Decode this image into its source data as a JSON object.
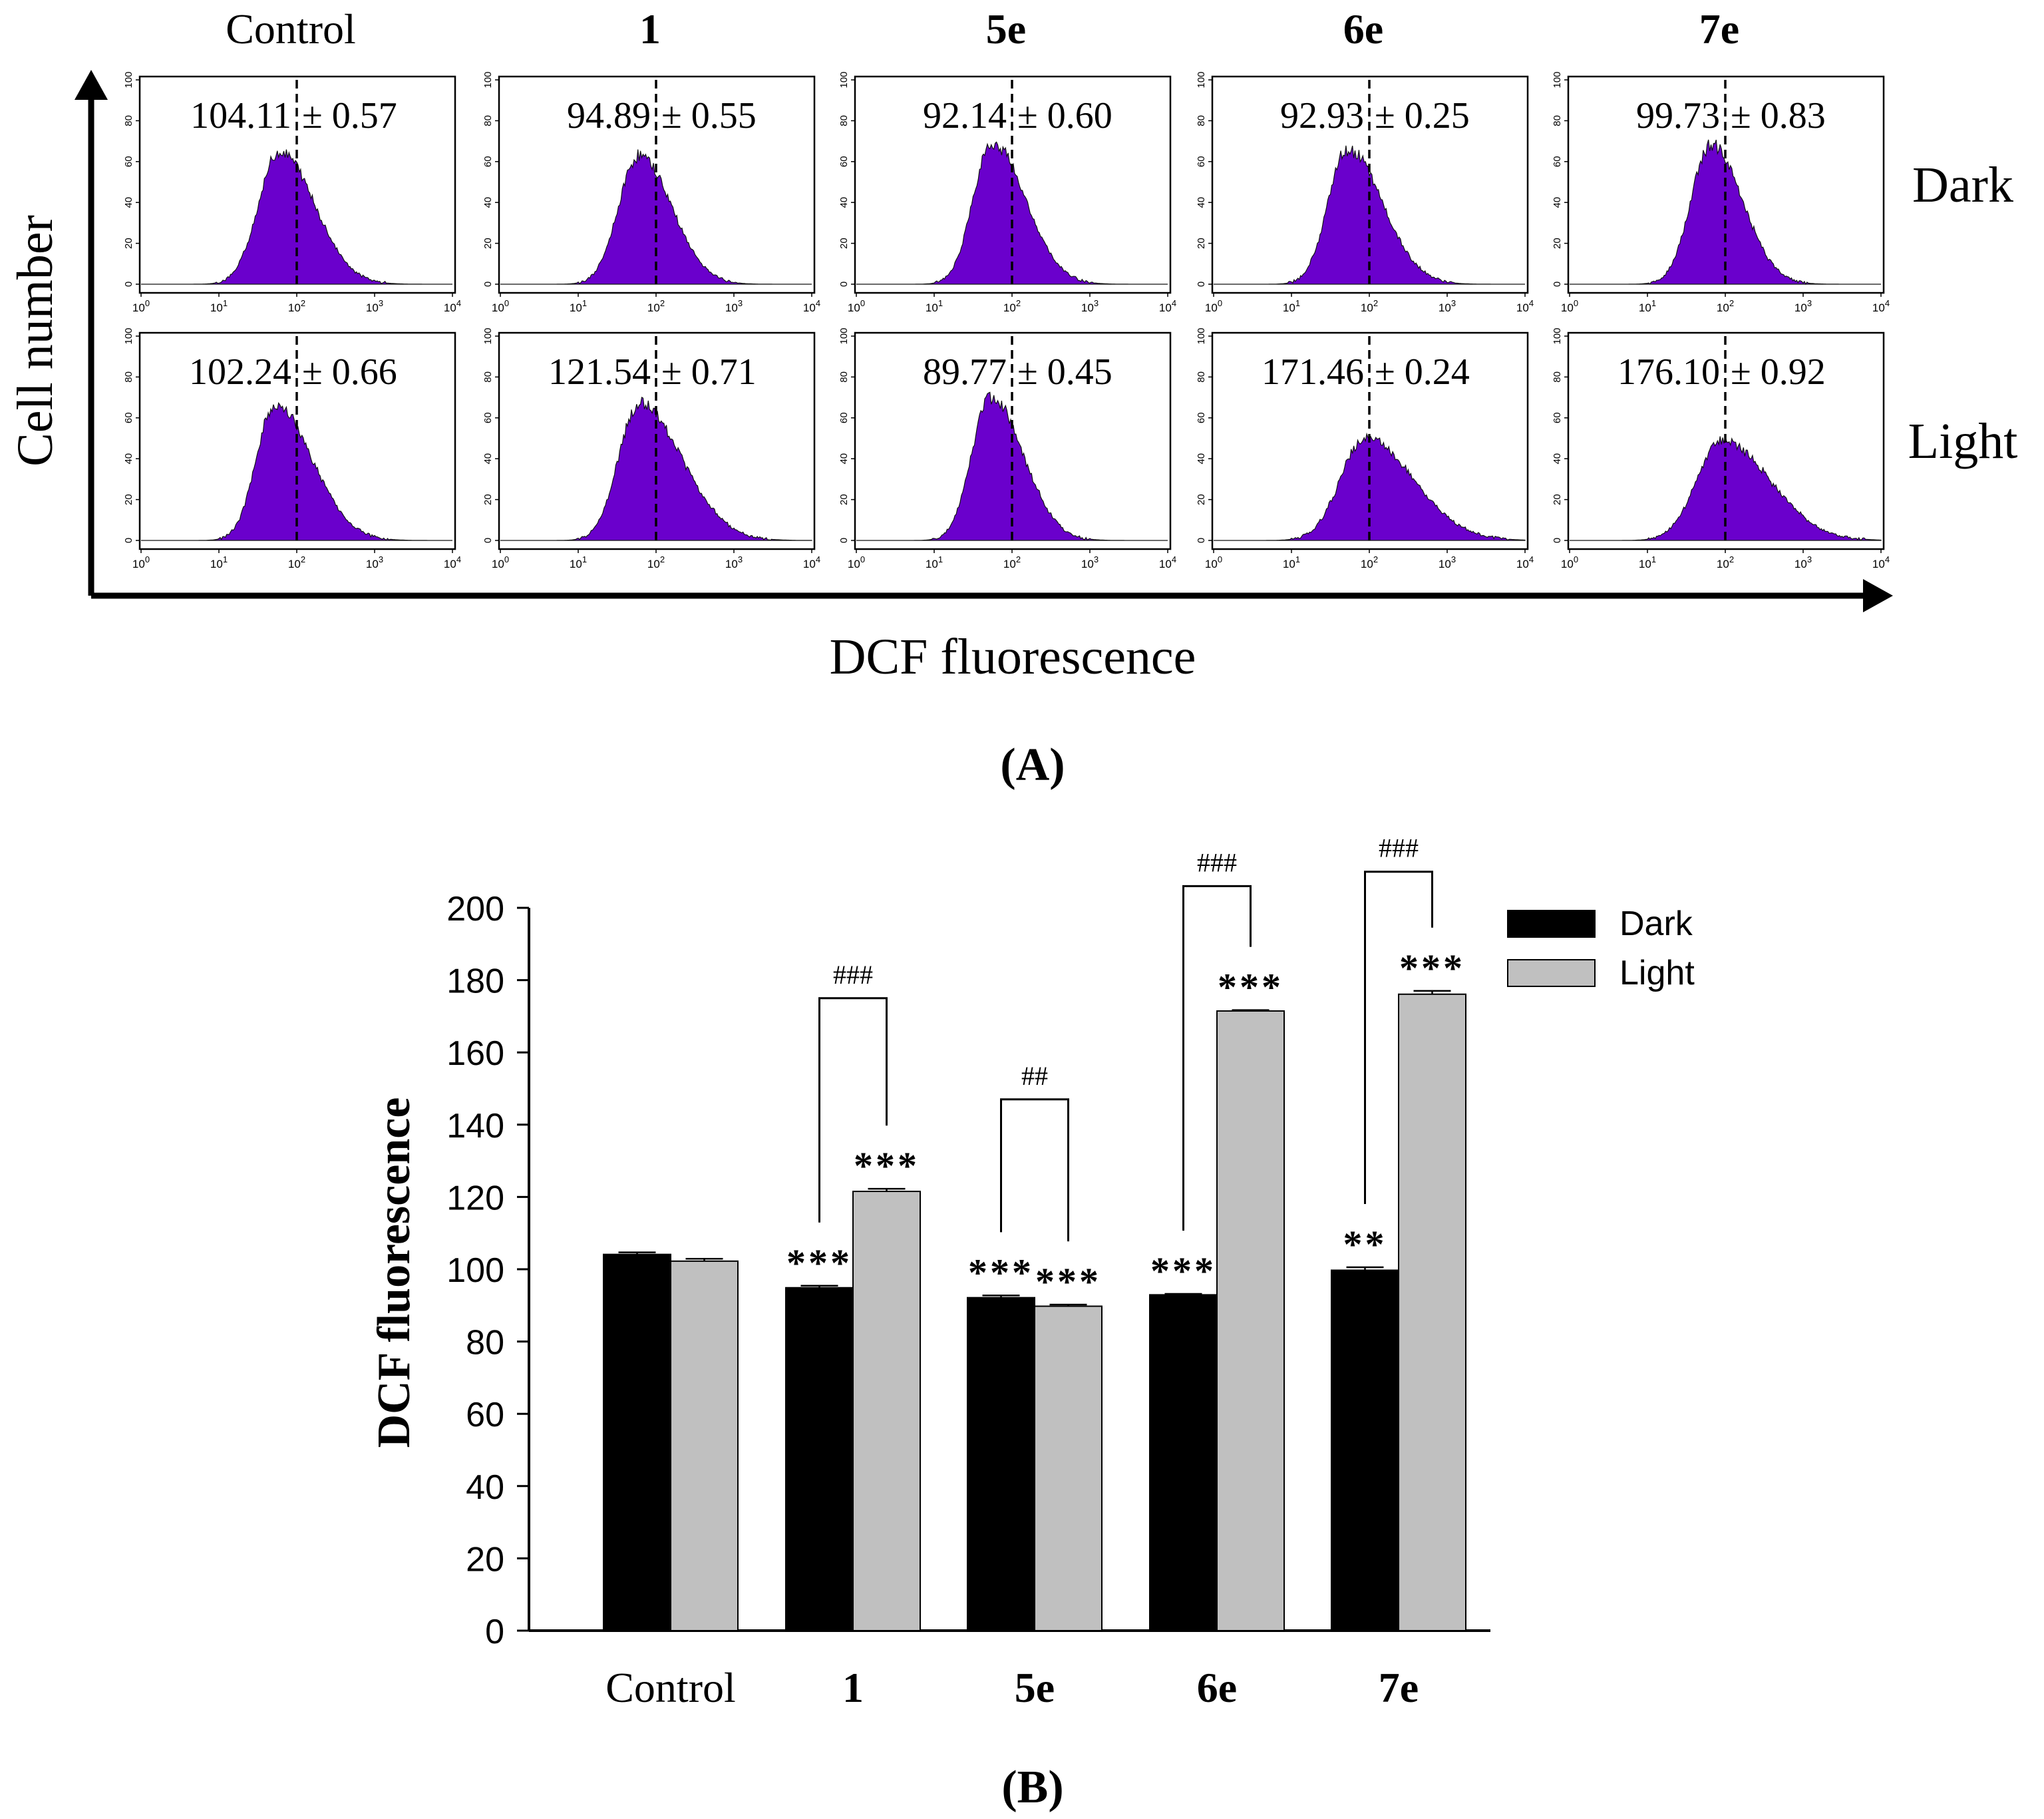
{
  "figure": {
    "panel_a_label": "(A)",
    "panel_b_label": "(B)"
  },
  "colors": {
    "histogram_fill": "#6a00cc",
    "dark_bar": "#000000",
    "light_bar": "#c0c0c0",
    "axis": "#000000"
  },
  "chart_data": [
    {
      "type": "histogram",
      "panel": "A",
      "xlabel": "DCF fluorescence",
      "ylabel": "Cell number",
      "x_scale": "log",
      "x_range": [
        1,
        10000
      ],
      "x_ticks": [
        "10",
        "10",
        "10",
        "10",
        "10"
      ],
      "x_tick_exponents": [
        "0",
        "1",
        "2",
        "3",
        "4"
      ],
      "y_ticks": [
        "0",
        "20",
        "40",
        "60",
        "80",
        "100"
      ],
      "y_range": [
        0,
        100
      ],
      "marker_value": 100,
      "columns": [
        {
          "label": "Control",
          "bold": false
        },
        {
          "label": "1",
          "bold": true
        },
        {
          "label": "5e",
          "bold": true
        },
        {
          "label": "6e",
          "bold": true
        },
        {
          "label": "7e",
          "bold": true
        }
      ],
      "rows": [
        "Dark",
        "Light"
      ],
      "panels": [
        {
          "row": "Dark",
          "column": "Control",
          "mean": "104.11",
          "sd": "0.57",
          "peak_log": 1.78,
          "sigma_left": 0.27,
          "sigma_right": 0.45,
          "peak_height": 65
        },
        {
          "row": "Dark",
          "column": "1",
          "mean": "94.89",
          "sd": "0.55",
          "peak_log": 1.78,
          "sigma_left": 0.26,
          "sigma_right": 0.42,
          "peak_height": 63
        },
        {
          "row": "Dark",
          "column": "5e",
          "mean": "92.14",
          "sd": "0.60",
          "peak_log": 1.74,
          "sigma_left": 0.24,
          "sigma_right": 0.43,
          "peak_height": 69
        },
        {
          "row": "Dark",
          "column": "6e",
          "mean": "92.93",
          "sd": "0.25",
          "peak_log": 1.72,
          "sigma_left": 0.25,
          "sigma_right": 0.45,
          "peak_height": 66
        },
        {
          "row": "Dark",
          "column": "7e",
          "mean": "99.73",
          "sd": "0.83",
          "peak_log": 1.82,
          "sigma_left": 0.26,
          "sigma_right": 0.4,
          "peak_height": 68
        },
        {
          "row": "Light",
          "column": "Control",
          "mean": "102.24",
          "sd": "0.66",
          "peak_log": 1.72,
          "sigma_left": 0.24,
          "sigma_right": 0.48,
          "peak_height": 66
        },
        {
          "row": "Light",
          "column": "1",
          "mean": "121.54",
          "sd": "0.71",
          "peak_log": 1.78,
          "sigma_left": 0.26,
          "sigma_right": 0.55,
          "peak_height": 67
        },
        {
          "row": "Light",
          "column": "5e",
          "mean": "89.77",
          "sd": "0.45",
          "peak_log": 1.72,
          "sigma_left": 0.24,
          "sigma_right": 0.42,
          "peak_height": 70
        },
        {
          "row": "Light",
          "column": "6e",
          "mean": "171.46",
          "sd": "0.24",
          "peak_log": 1.95,
          "sigma_left": 0.32,
          "sigma_right": 0.62,
          "peak_height": 50
        },
        {
          "row": "Light",
          "column": "7e",
          "mean": "176.10",
          "sd": "0.92",
          "peak_log": 1.95,
          "sigma_left": 0.32,
          "sigma_right": 0.62,
          "peak_height": 49
        }
      ]
    },
    {
      "type": "bar",
      "panel": "B",
      "ylabel": "DCF fluorescence",
      "ylim": [
        0,
        200
      ],
      "y_ticks": [
        "0",
        "20",
        "40",
        "60",
        "80",
        "100",
        "120",
        "140",
        "160",
        "180",
        "200"
      ],
      "categories": [
        "Control",
        "1",
        "5e",
        "6e",
        "7e"
      ],
      "category_bold": [
        false,
        true,
        true,
        true,
        true
      ],
      "legend_position": "top-right",
      "series": [
        {
          "name": "Dark",
          "values": [
            104.11,
            94.89,
            92.14,
            92.93,
            99.73
          ],
          "errors": [
            0.57,
            0.55,
            0.6,
            0.25,
            0.83
          ],
          "stars": [
            "",
            "***",
            "***",
            "***",
            "**"
          ]
        },
        {
          "name": "Light",
          "values": [
            102.24,
            121.54,
            89.77,
            171.46,
            176.1
          ],
          "errors": [
            0.66,
            0.71,
            0.45,
            0.24,
            0.92
          ],
          "stars": [
            "",
            "***",
            "***",
            "***",
            "***"
          ]
        }
      ],
      "comparisons": [
        {
          "category": "1",
          "label": "###",
          "level": 175
        },
        {
          "category": "5e",
          "label": "##",
          "level": 147
        },
        {
          "category": "6e",
          "label": "###",
          "level": 206
        },
        {
          "category": "7e",
          "label": "###",
          "level": 210
        }
      ]
    }
  ]
}
